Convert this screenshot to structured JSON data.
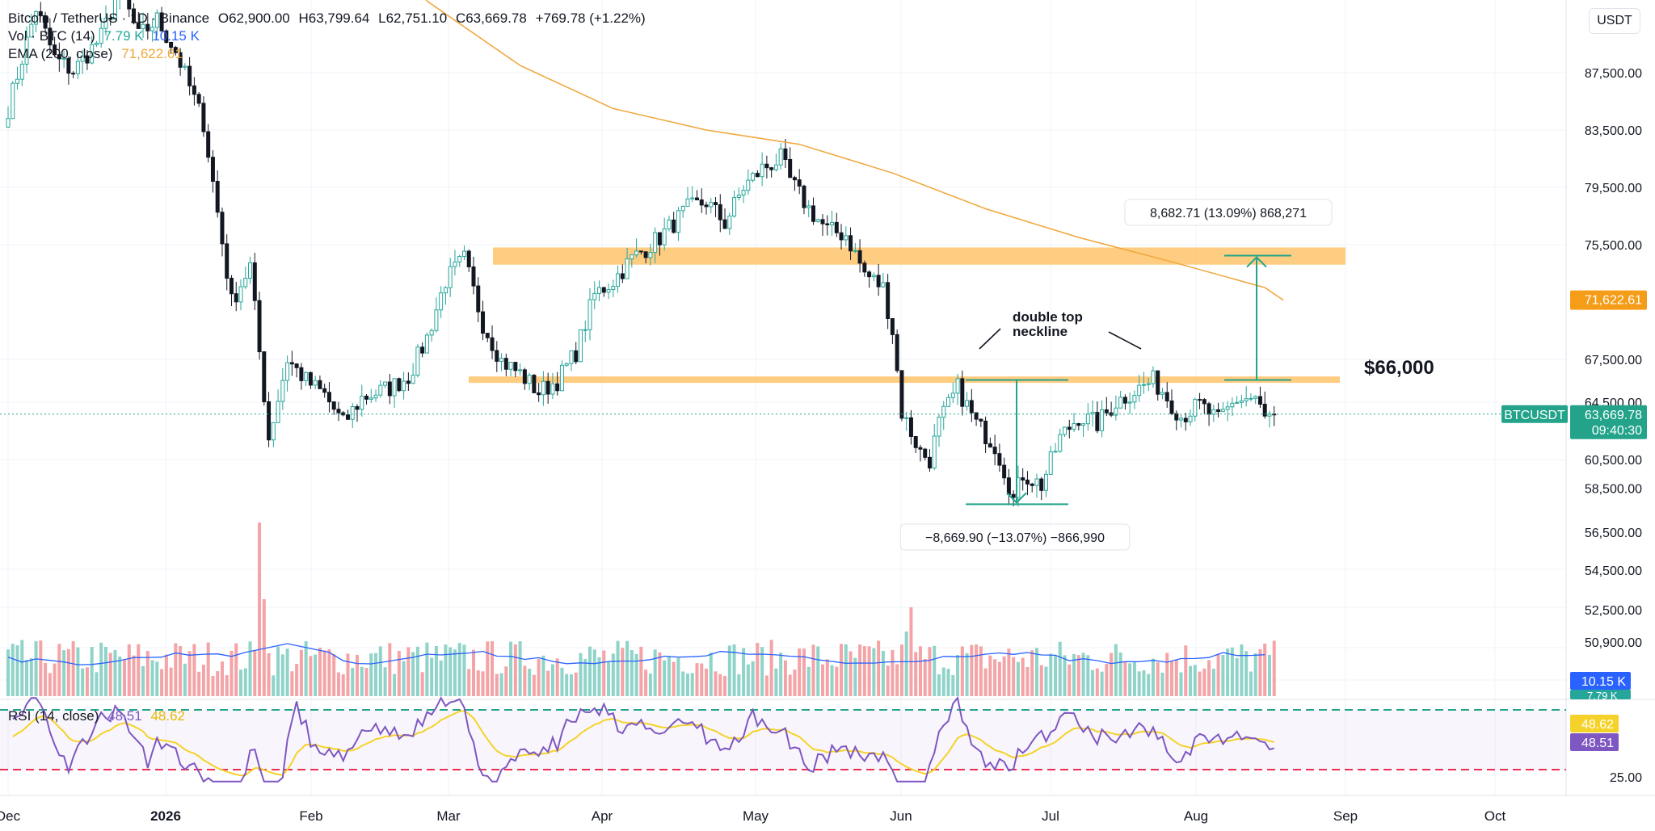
{
  "header": {
    "symbol_title": "Bitcoin / TetherUS · 1D · Binance",
    "open": "O62,900.00",
    "high": "H63,799.64",
    "low": "L62,751.10",
    "close": "C63,669.78",
    "change": "+769.78 (+1.22%)",
    "vol_label": "Vol · BTC (14)",
    "vol_value_1": "7.79 K",
    "vol_value_2": "10.15 K",
    "ema_label": "EMA (200, close)",
    "ema_value": "71,622.61",
    "rsi_label": "RSI (14, close)",
    "rsi_value": "48.51",
    "rsi_ma_value": "48.62"
  },
  "currency_button": "USDT",
  "colors": {
    "up": "#26a69a",
    "down": "#131722",
    "ema": "#f0a63a",
    "zone": "#ffc46b",
    "measure": "#22a38a",
    "vol_up": "#8fd3c9",
    "vol_down": "#f4a3a6",
    "vol_ma": "#2962ff",
    "rsi": "#7e57c2",
    "rsi_ma": "#f5d22a",
    "rsi_upper": "#22a38a",
    "rsi_lower": "#ef2d4f",
    "price_badge": "#22a38a",
    "ema_badge": "#f59d18",
    "vol_badge": "#2962ff",
    "vol_badge2": "#26a69a"
  },
  "chart_data": {
    "type": "candlestick",
    "price_axis_ticks": [
      "87,500.00",
      "83,500.00",
      "79,500.00",
      "75,500.00",
      "67,500.00",
      "64,500.00",
      "60,500.00",
      "58,500.00",
      "56,500.00",
      "54,500.00",
      "52,500.00",
      "50,900.00"
    ],
    "x_axis_labels": [
      "Dec",
      "2026",
      "Feb",
      "Mar",
      "Apr",
      "May",
      "Jun",
      "Jul",
      "Aug",
      "Sep",
      "Oct"
    ],
    "rsi_axis_tick": "25.00",
    "rsi_bands": [
      70,
      30
    ],
    "resistance_zones": [
      {
        "from": 74100,
        "to": 75300
      },
      {
        "from": 65900,
        "to": 66300
      }
    ],
    "measure_down": {
      "from": 66050,
      "to": 57380,
      "label": "−8,669.90 (−13.07%) −866,990"
    },
    "measure_up": {
      "from": 66050,
      "to": 74730,
      "label": "8,682.71 (13.09%) 868,271"
    },
    "annotation_pattern": "double top\nneckline",
    "annotation_level": "$66,000",
    "ema_last": "71,622.61",
    "last_price": {
      "symbol": "BTCUSDT",
      "value": "63,669.78",
      "countdown": "09:40:30",
      "price": 63669.78
    },
    "volume_badges": [
      "10.15 K",
      "7.79 K"
    ],
    "rsi_badges": [
      "48.62",
      "48.51"
    ],
    "keypoints": [
      [
        0,
        85000
      ],
      [
        6,
        92000
      ],
      [
        10,
        88500
      ],
      [
        14,
        87600
      ],
      [
        20,
        90000
      ],
      [
        24,
        93500
      ],
      [
        28,
        90000
      ],
      [
        32,
        91200
      ],
      [
        36,
        89000
      ],
      [
        42,
        84000
      ],
      [
        48,
        71500
      ],
      [
        52,
        74000
      ],
      [
        56,
        62000
      ],
      [
        60,
        67500
      ],
      [
        64,
        66000
      ],
      [
        68,
        65000
      ],
      [
        72,
        63000
      ],
      [
        76,
        64800
      ],
      [
        82,
        65500
      ],
      [
        86,
        66300
      ],
      [
        90,
        69000
      ],
      [
        94,
        73000
      ],
      [
        98,
        74500
      ],
      [
        102,
        70000
      ],
      [
        106,
        67400
      ],
      [
        110,
        66500
      ],
      [
        114,
        65200
      ],
      [
        118,
        66000
      ],
      [
        122,
        68000
      ],
      [
        126,
        72000
      ],
      [
        130,
        73000
      ],
      [
        134,
        74500
      ],
      [
        140,
        76000
      ],
      [
        146,
        78000
      ],
      [
        150,
        78500
      ],
      [
        154,
        77000
      ],
      [
        158,
        79500
      ],
      [
        162,
        80800
      ],
      [
        166,
        81500
      ],
      [
        168,
        80000
      ],
      [
        172,
        78000
      ],
      [
        176,
        76500
      ],
      [
        180,
        76200
      ],
      [
        184,
        73500
      ],
      [
        188,
        72500
      ],
      [
        190,
        69500
      ],
      [
        192,
        63800
      ],
      [
        196,
        61000
      ],
      [
        198,
        60500
      ],
      [
        200,
        63000
      ],
      [
        204,
        65500
      ],
      [
        208,
        63000
      ],
      [
        212,
        61500
      ],
      [
        214,
        59800
      ],
      [
        216,
        57700
      ],
      [
        218,
        59500
      ],
      [
        222,
        58700
      ],
      [
        226,
        62000
      ],
      [
        230,
        63500
      ],
      [
        234,
        63000
      ],
      [
        238,
        64500
      ],
      [
        242,
        65300
      ],
      [
        246,
        66000
      ],
      [
        248,
        65300
      ],
      [
        252,
        63500
      ],
      [
        256,
        64300
      ],
      [
        260,
        63200
      ],
      [
        264,
        64700
      ],
      [
        268,
        64800
      ],
      [
        270,
        63300
      ],
      [
        272,
        63669.78
      ]
    ],
    "ema200_points": [
      [
        76,
        99000
      ],
      [
        90,
        92500
      ],
      [
        110,
        88000
      ],
      [
        130,
        85000
      ],
      [
        150,
        83500
      ],
      [
        170,
        82500
      ],
      [
        190,
        80500
      ],
      [
        210,
        78000
      ],
      [
        230,
        76000
      ],
      [
        250,
        74300
      ],
      [
        270,
        72500
      ],
      [
        274,
        71622.61
      ]
    ]
  }
}
